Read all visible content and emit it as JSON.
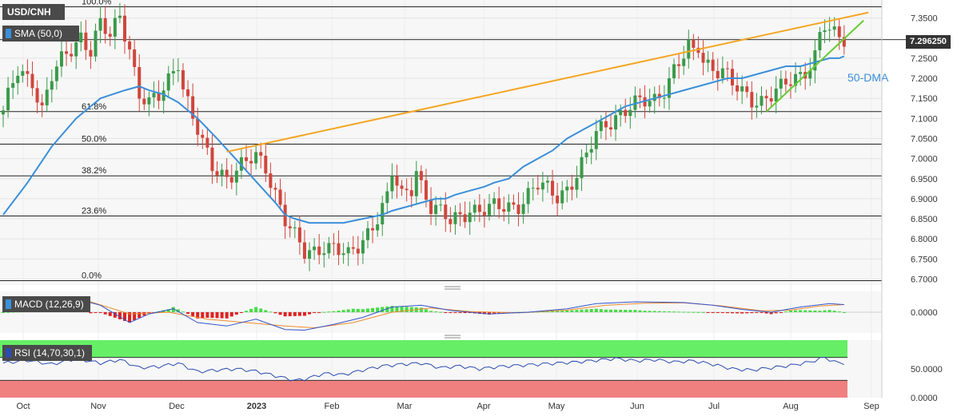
{
  "instrument": "USD/CNH",
  "indicators": {
    "sma_label": "SMA (50,0)",
    "macd_label": "MACD (12,26,9)",
    "rsi_label": "RSI (14,70,30,1)"
  },
  "current_price": "7.296250",
  "annotation_dma": "50-DMA",
  "colors": {
    "up": "#3a9a4a",
    "down": "#d0463c",
    "sma": "#3b8fd9",
    "resistance": "#f5a623",
    "support": "#66cc33",
    "macd_hist_pos": "#44dd44",
    "macd_hist_neg": "#dd2222",
    "rsi_line": "#2b4cb0",
    "rsi_overbought_zone": "#66ee66",
    "rsi_oversold_zone": "#f08080"
  },
  "chart_data": {
    "type": "candlestick",
    "price_axis": {
      "ticks": [
        "7.3500",
        "7.3000",
        "7.2500",
        "7.2000",
        "7.1500",
        "7.1000",
        "7.0500",
        "7.0000",
        "6.9500",
        "6.9000",
        "6.8500",
        "6.8000",
        "6.7500",
        "6.7000"
      ],
      "range": [
        6.685,
        7.395
      ]
    },
    "x_axis": {
      "labels": [
        "Oct",
        "Nov",
        "Dec",
        "2023",
        "Feb",
        "Mar",
        "Apr",
        "May",
        "Jun",
        "Jul",
        "Aug",
        "Sep"
      ],
      "bold": [
        "2023"
      ]
    },
    "fibonacci_levels": [
      {
        "label": "100.0%",
        "value": 7.378
      },
      {
        "label": "61.8%",
        "value": 7.117
      },
      {
        "label": "50.0%",
        "value": 7.036
      },
      {
        "label": "38.2%",
        "value": 6.957
      },
      {
        "label": "23.6%",
        "value": 6.857
      },
      {
        "label": "0.0%",
        "value": 6.696
      }
    ],
    "current_price_level": 7.29625,
    "close_path": [
      [
        0,
        7.11
      ],
      [
        3,
        7.22
      ],
      [
        6,
        7.2
      ],
      [
        8,
        7.12
      ],
      [
        10,
        7.2
      ],
      [
        13,
        7.26
      ],
      [
        16,
        7.31
      ],
      [
        18,
        7.27
      ],
      [
        20,
        7.33
      ],
      [
        22,
        7.3
      ],
      [
        24,
        7.36
      ],
      [
        26,
        7.28
      ],
      [
        28,
        7.16
      ],
      [
        30,
        7.13
      ],
      [
        32,
        7.15
      ],
      [
        34,
        7.2
      ],
      [
        36,
        7.25
      ],
      [
        37,
        7.18
      ],
      [
        39,
        7.1
      ],
      [
        41,
        7.03
      ],
      [
        43,
        6.98
      ],
      [
        46,
        6.96
      ],
      [
        49,
        6.98
      ],
      [
        52,
        7.0
      ],
      [
        54,
        6.98
      ],
      [
        56,
        6.92
      ],
      [
        58,
        6.85
      ],
      [
        60,
        6.8
      ],
      [
        62,
        6.76
      ],
      [
        64,
        6.77
      ],
      [
        66,
        6.79
      ],
      [
        68,
        6.78
      ],
      [
        70,
        6.76
      ],
      [
        71,
        6.75
      ],
      [
        73,
        6.78
      ],
      [
        75,
        6.82
      ],
      [
        77,
        6.86
      ],
      [
        79,
        6.9
      ],
      [
        80,
        6.96
      ],
      [
        82,
        6.9
      ],
      [
        84,
        6.93
      ],
      [
        85,
        6.98
      ],
      [
        86,
        6.94
      ],
      [
        88,
        6.88
      ],
      [
        90,
        6.86
      ],
      [
        92,
        6.84
      ],
      [
        94,
        6.86
      ],
      [
        96,
        6.88
      ],
      [
        98,
        6.87
      ],
      [
        100,
        6.87
      ],
      [
        103,
        6.88
      ],
      [
        106,
        6.89
      ],
      [
        108,
        6.91
      ],
      [
        110,
        6.93
      ],
      [
        112,
        6.92
      ],
      [
        114,
        6.91
      ],
      [
        116,
        6.93
      ],
      [
        118,
        6.96
      ],
      [
        120,
        7.0
      ],
      [
        122,
        7.06
      ],
      [
        124,
        7.09
      ],
      [
        126,
        7.11
      ],
      [
        128,
        7.12
      ],
      [
        130,
        7.13
      ],
      [
        132,
        7.14
      ],
      [
        134,
        7.15
      ],
      [
        136,
        7.18
      ],
      [
        138,
        7.22
      ],
      [
        140,
        7.25
      ],
      [
        141,
        7.27
      ],
      [
        142,
        7.26
      ],
      [
        143,
        7.28
      ],
      [
        144,
        7.25
      ],
      [
        146,
        7.23
      ],
      [
        148,
        7.22
      ],
      [
        150,
        7.18
      ],
      [
        152,
        7.16
      ],
      [
        154,
        7.15
      ],
      [
        156,
        7.15
      ],
      [
        158,
        7.16
      ],
      [
        160,
        7.17
      ],
      [
        162,
        7.19
      ],
      [
        164,
        7.21
      ],
      [
        166,
        7.24
      ],
      [
        167,
        7.26
      ],
      [
        168,
        7.31
      ],
      [
        169,
        7.33
      ],
      [
        170,
        7.31
      ],
      [
        171,
        7.3
      ],
      [
        172,
        7.3
      ],
      [
        173,
        7.296
      ]
    ],
    "sma_50": [
      [
        0,
        6.86
      ],
      [
        5,
        6.94
      ],
      [
        10,
        7.03
      ],
      [
        15,
        7.1
      ],
      [
        20,
        7.15
      ],
      [
        25,
        7.17
      ],
      [
        28,
        7.18
      ],
      [
        30,
        7.17
      ],
      [
        33,
        7.16
      ],
      [
        36,
        7.14
      ],
      [
        40,
        7.1
      ],
      [
        44,
        7.05
      ],
      [
        47,
        7.01
      ],
      [
        50,
        6.97
      ],
      [
        53,
        6.93
      ],
      [
        56,
        6.89
      ],
      [
        58,
        6.86
      ],
      [
        60,
        6.85
      ],
      [
        63,
        6.84
      ],
      [
        66,
        6.84
      ],
      [
        70,
        6.84
      ],
      [
        74,
        6.85
      ],
      [
        78,
        6.86
      ],
      [
        80,
        6.87
      ],
      [
        83,
        6.88
      ],
      [
        86,
        6.89
      ],
      [
        89,
        6.9
      ],
      [
        91,
        6.9
      ],
      [
        93,
        6.91
      ],
      [
        96,
        6.92
      ],
      [
        99,
        6.93
      ],
      [
        101,
        6.94
      ],
      [
        104,
        6.95
      ],
      [
        107,
        6.98
      ],
      [
        110,
        7.0
      ],
      [
        113,
        7.02
      ],
      [
        116,
        7.05
      ],
      [
        119,
        7.07
      ],
      [
        122,
        7.09
      ],
      [
        125,
        7.11
      ],
      [
        128,
        7.13
      ],
      [
        131,
        7.14
      ],
      [
        134,
        7.15
      ],
      [
        137,
        7.16
      ],
      [
        140,
        7.17
      ],
      [
        143,
        7.18
      ],
      [
        146,
        7.19
      ],
      [
        149,
        7.2
      ],
      [
        152,
        7.2
      ],
      [
        155,
        7.21
      ],
      [
        158,
        7.22
      ],
      [
        161,
        7.23
      ],
      [
        164,
        7.23
      ],
      [
        167,
        7.24
      ],
      [
        170,
        7.25
      ],
      [
        172,
        7.25
      ],
      [
        173,
        7.255
      ]
    ],
    "resistance_line": [
      [
        46,
        7.017
      ],
      [
        178,
        7.364
      ]
    ],
    "support_line": [
      [
        157,
        7.117
      ],
      [
        177,
        7.344
      ]
    ],
    "macd": {
      "range": [
        -0.06,
        0.06
      ],
      "ticks": [
        "0.0000"
      ],
      "macd_line": [
        [
          0,
          0.01
        ],
        [
          10,
          0.03
        ],
        [
          16,
          0.035
        ],
        [
          20,
          0.02
        ],
        [
          26,
          -0.03
        ],
        [
          30,
          -0.005
        ],
        [
          35,
          0.01
        ],
        [
          40,
          -0.03
        ],
        [
          46,
          -0.04
        ],
        [
          52,
          -0.02
        ],
        [
          58,
          -0.05
        ],
        [
          62,
          -0.052
        ],
        [
          68,
          -0.035
        ],
        [
          74,
          -0.015
        ],
        [
          80,
          0.015
        ],
        [
          86,
          0.02
        ],
        [
          92,
          0.005
        ],
        [
          100,
          -0.005
        ],
        [
          108,
          0.0
        ],
        [
          116,
          0.01
        ],
        [
          122,
          0.025
        ],
        [
          130,
          0.03
        ],
        [
          140,
          0.028
        ],
        [
          146,
          0.02
        ],
        [
          152,
          0.008
        ],
        [
          158,
          0.0
        ],
        [
          164,
          0.015
        ],
        [
          170,
          0.025
        ],
        [
          173,
          0.022
        ]
      ],
      "signal_line": [
        [
          0,
          0.01
        ],
        [
          10,
          0.025
        ],
        [
          18,
          0.03
        ],
        [
          26,
          -0.005
        ],
        [
          34,
          0.0
        ],
        [
          42,
          -0.02
        ],
        [
          50,
          -0.03
        ],
        [
          58,
          -0.04
        ],
        [
          64,
          -0.045
        ],
        [
          72,
          -0.03
        ],
        [
          80,
          0.0
        ],
        [
          88,
          0.012
        ],
        [
          96,
          0.002
        ],
        [
          106,
          -0.002
        ],
        [
          116,
          0.006
        ],
        [
          124,
          0.02
        ],
        [
          132,
          0.026
        ],
        [
          140,
          0.027
        ],
        [
          148,
          0.018
        ],
        [
          156,
          0.004
        ],
        [
          162,
          0.006
        ],
        [
          168,
          0.018
        ],
        [
          173,
          0.022
        ]
      ],
      "histogram_sign": [
        [
          0,
          1
        ],
        [
          6,
          -1
        ],
        [
          12,
          -1
        ],
        [
          16,
          -1
        ],
        [
          22,
          -1
        ],
        [
          26,
          1
        ],
        [
          36,
          -1
        ],
        [
          50,
          1
        ],
        [
          56,
          -1
        ],
        [
          66,
          1
        ],
        [
          82,
          1
        ],
        [
          90,
          -1
        ],
        [
          100,
          -1
        ],
        [
          108,
          1
        ],
        [
          118,
          1
        ],
        [
          128,
          1
        ],
        [
          138,
          -1
        ],
        [
          150,
          -1
        ],
        [
          158,
          1
        ],
        [
          166,
          1
        ],
        [
          173,
          1
        ]
      ]
    },
    "rsi": {
      "range": [
        0,
        100
      ],
      "ticks": [
        "50.0000",
        "0.0000"
      ],
      "overbought": 70,
      "oversold": 30,
      "values": [
        [
          0,
          60
        ],
        [
          5,
          65
        ],
        [
          10,
          58
        ],
        [
          15,
          68
        ],
        [
          20,
          60
        ],
        [
          24,
          66
        ],
        [
          28,
          52
        ],
        [
          32,
          54
        ],
        [
          36,
          60
        ],
        [
          40,
          45
        ],
        [
          44,
          48
        ],
        [
          48,
          50
        ],
        [
          52,
          46
        ],
        [
          56,
          38
        ],
        [
          60,
          30
        ],
        [
          62,
          32
        ],
        [
          66,
          42
        ],
        [
          70,
          40
        ],
        [
          74,
          48
        ],
        [
          78,
          55
        ],
        [
          82,
          58
        ],
        [
          86,
          60
        ],
        [
          90,
          52
        ],
        [
          94,
          55
        ],
        [
          98,
          50
        ],
        [
          102,
          54
        ],
        [
          106,
          56
        ],
        [
          110,
          58
        ],
        [
          114,
          60
        ],
        [
          118,
          62
        ],
        [
          122,
          65
        ],
        [
          126,
          68
        ],
        [
          130,
          64
        ],
        [
          134,
          66
        ],
        [
          138,
          62
        ],
        [
          142,
          64
        ],
        [
          146,
          58
        ],
        [
          150,
          50
        ],
        [
          154,
          48
        ],
        [
          158,
          52
        ],
        [
          162,
          56
        ],
        [
          166,
          62
        ],
        [
          169,
          70
        ],
        [
          171,
          62
        ],
        [
          173,
          60
        ]
      ]
    }
  }
}
